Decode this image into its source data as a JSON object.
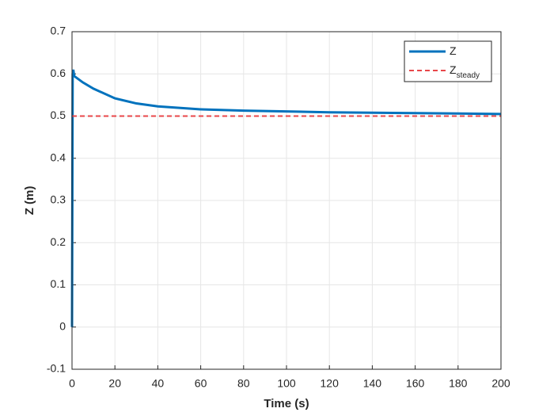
{
  "chart_data": {
    "type": "line",
    "xlabel": "Time (s)",
    "ylabel": "Z (m)",
    "xlim": [
      0,
      200
    ],
    "xticks": [
      0,
      20,
      40,
      60,
      80,
      100,
      120,
      140,
      160,
      180,
      200
    ],
    "ylim": [
      -0.1,
      0.7
    ],
    "yticks": [
      -0.1,
      0,
      0.1,
      0.2,
      0.3,
      0.4,
      0.5,
      0.6,
      0.7
    ],
    "grid": true,
    "legend": "northeast",
    "series": [
      {
        "name": "Z",
        "color": "#0072bd",
        "dash": false,
        "x": [
          0,
          0.3,
          0.6,
          1,
          5,
          10,
          20,
          30,
          40,
          60,
          80,
          100,
          120,
          140,
          160,
          180,
          200
        ],
        "values": [
          0,
          0.6,
          0.61,
          0.595,
          0.58,
          0.565,
          0.542,
          0.53,
          0.523,
          0.516,
          0.513,
          0.511,
          0.509,
          0.508,
          0.507,
          0.506,
          0.505
        ]
      },
      {
        "name": "Z",
        "subscript": "steady",
        "color": "#e8474a",
        "dash": true,
        "x": [
          0,
          200
        ],
        "values": [
          0.5,
          0.5
        ]
      }
    ]
  }
}
